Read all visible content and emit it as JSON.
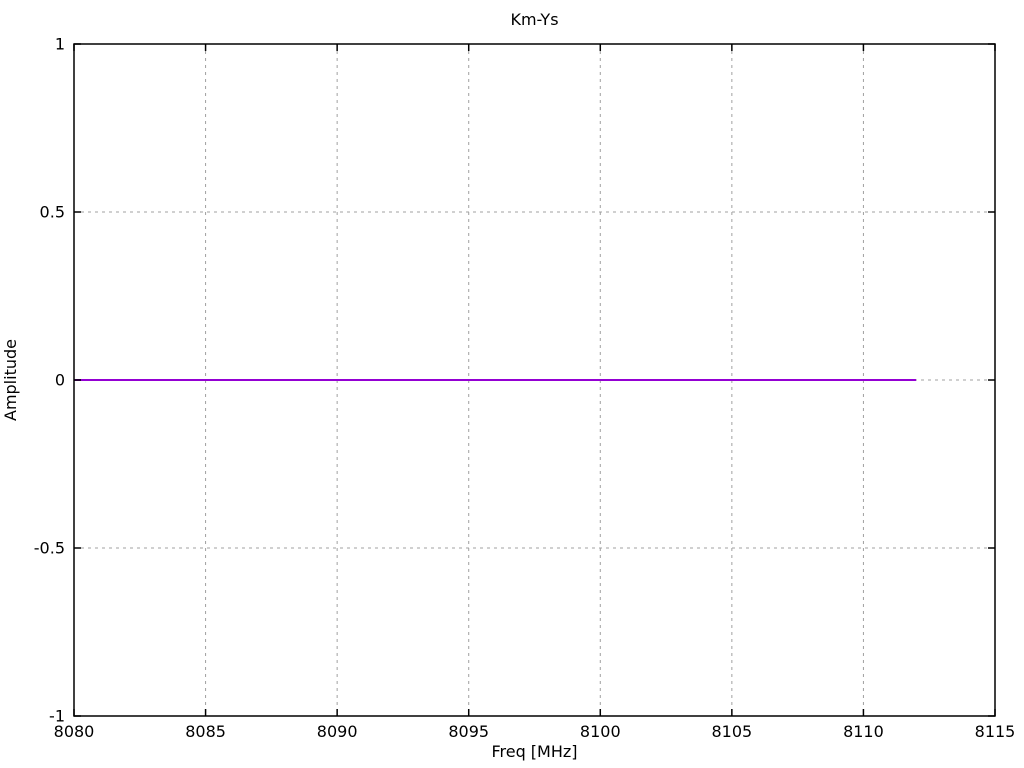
{
  "chart_data": {
    "type": "line",
    "title": "Km-Ys",
    "xlabel": "Freq [MHz]",
    "ylabel": "Amplitude",
    "xlim": [
      8080,
      8115
    ],
    "ylim": [
      -1,
      1
    ],
    "xticks": [
      8080,
      8085,
      8090,
      8095,
      8100,
      8105,
      8110,
      8115
    ],
    "xtick_labels": [
      "8080",
      "8085",
      "8090",
      "8095",
      "8100",
      "8105",
      "8110",
      "8115"
    ],
    "yticks": [
      -1,
      -0.5,
      0,
      0.5,
      1
    ],
    "ytick_labels": [
      "-1",
      "-0.5",
      "0",
      "0.5",
      "1"
    ],
    "grid": true,
    "grid_style": "dotted",
    "legend": "none",
    "colors": {
      "background": "#ffffff",
      "axis": "#000000",
      "grid": "#a0a0a0",
      "text": "#000000"
    },
    "series": [
      {
        "name": "Km-Ys",
        "color": "#9400d3",
        "x": [
          8080,
          8112
        ],
        "y": [
          0,
          0
        ]
      }
    ]
  }
}
